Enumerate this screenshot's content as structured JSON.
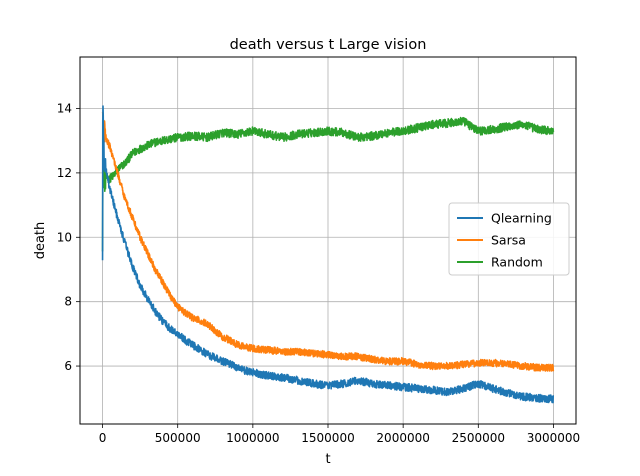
{
  "chart_data": {
    "type": "line",
    "title": "death versus t Large vision",
    "xlabel": "t",
    "ylabel": "death",
    "xlim": [
      -150000,
      3150000
    ],
    "ylim": [
      4.2,
      15.6
    ],
    "x_ticks": [
      0,
      500000,
      1000000,
      1500000,
      2000000,
      2500000,
      3000000
    ],
    "x_tick_labels": [
      "0",
      "500000",
      "1000000",
      "1500000",
      "2000000",
      "2500000",
      "3000000"
    ],
    "y_ticks": [
      6,
      8,
      10,
      12,
      14
    ],
    "y_tick_labels": [
      "6",
      "8",
      "10",
      "12",
      "14"
    ],
    "grid": true,
    "legend_position": "center-right",
    "series": [
      {
        "name": "Qlearning",
        "color": "#1f77b4",
        "noise": 0.12,
        "x": [
          0,
          2000,
          5000,
          10000,
          30000,
          60000,
          100000,
          150000,
          200000,
          250000,
          300000,
          350000,
          400000,
          450000,
          500000,
          550000,
          600000,
          650000,
          700000,
          750000,
          800000,
          850000,
          900000,
          950000,
          1000000,
          1100000,
          1200000,
          1300000,
          1400000,
          1500000,
          1600000,
          1700000,
          1800000,
          1900000,
          2000000,
          2100000,
          2200000,
          2300000,
          2400000,
          2500000,
          2600000,
          2700000,
          2800000,
          2900000,
          3000000
        ],
        "y": [
          9.0,
          14.9,
          13.2,
          12.4,
          11.9,
          11.3,
          10.6,
          9.8,
          9.1,
          8.5,
          8.1,
          7.7,
          7.4,
          7.15,
          7.0,
          6.8,
          6.65,
          6.5,
          6.35,
          6.25,
          6.15,
          6.05,
          5.95,
          5.85,
          5.8,
          5.7,
          5.65,
          5.55,
          5.45,
          5.4,
          5.45,
          5.55,
          5.45,
          5.4,
          5.35,
          5.3,
          5.25,
          5.2,
          5.3,
          5.45,
          5.3,
          5.15,
          5.05,
          5.0,
          4.98
        ]
      },
      {
        "name": "Sarsa",
        "color": "#ff7f0e",
        "noise": 0.11,
        "x": [
          0,
          5000,
          20000,
          50000,
          100000,
          150000,
          200000,
          250000,
          300000,
          350000,
          400000,
          450000,
          500000,
          550000,
          600000,
          650000,
          700000,
          750000,
          800000,
          850000,
          900000,
          950000,
          1000000,
          1100000,
          1200000,
          1300000,
          1400000,
          1500000,
          1600000,
          1700000,
          1800000,
          1900000,
          2000000,
          2100000,
          2200000,
          2300000,
          2400000,
          2500000,
          2600000,
          2700000,
          2800000,
          2900000,
          3000000
        ],
        "y": [
          13.6,
          13.4,
          13.1,
          12.8,
          12.0,
          11.2,
          10.6,
          10.0,
          9.5,
          9.0,
          8.6,
          8.2,
          7.85,
          7.65,
          7.5,
          7.4,
          7.3,
          7.1,
          6.9,
          6.8,
          6.65,
          6.6,
          6.55,
          6.5,
          6.45,
          6.45,
          6.4,
          6.35,
          6.3,
          6.3,
          6.2,
          6.15,
          6.15,
          6.05,
          6.0,
          6.0,
          6.05,
          6.1,
          6.1,
          6.05,
          6.0,
          5.95,
          5.95
        ]
      },
      {
        "name": "Random",
        "color": "#2ca02c",
        "noise": 0.13,
        "x": [
          0,
          2000,
          5000,
          10000,
          20000,
          40000,
          70000,
          100000,
          150000,
          200000,
          250000,
          300000,
          350000,
          400000,
          450000,
          500000,
          600000,
          700000,
          800000,
          900000,
          1000000,
          1100000,
          1200000,
          1300000,
          1400000,
          1500000,
          1600000,
          1700000,
          1800000,
          1900000,
          2000000,
          2100000,
          2200000,
          2300000,
          2400000,
          2500000,
          2600000,
          2700000,
          2800000,
          2900000,
          3000000
        ],
        "y": [
          10.0,
          12.5,
          12.0,
          11.8,
          11.9,
          11.8,
          11.9,
          12.1,
          12.3,
          12.6,
          12.75,
          12.85,
          12.95,
          13.0,
          13.05,
          13.1,
          13.15,
          13.1,
          13.25,
          13.2,
          13.3,
          13.2,
          13.1,
          13.2,
          13.25,
          13.3,
          13.25,
          13.1,
          13.15,
          13.25,
          13.3,
          13.4,
          13.5,
          13.55,
          13.6,
          13.3,
          13.35,
          13.45,
          13.5,
          13.35,
          13.3
        ]
      }
    ]
  }
}
